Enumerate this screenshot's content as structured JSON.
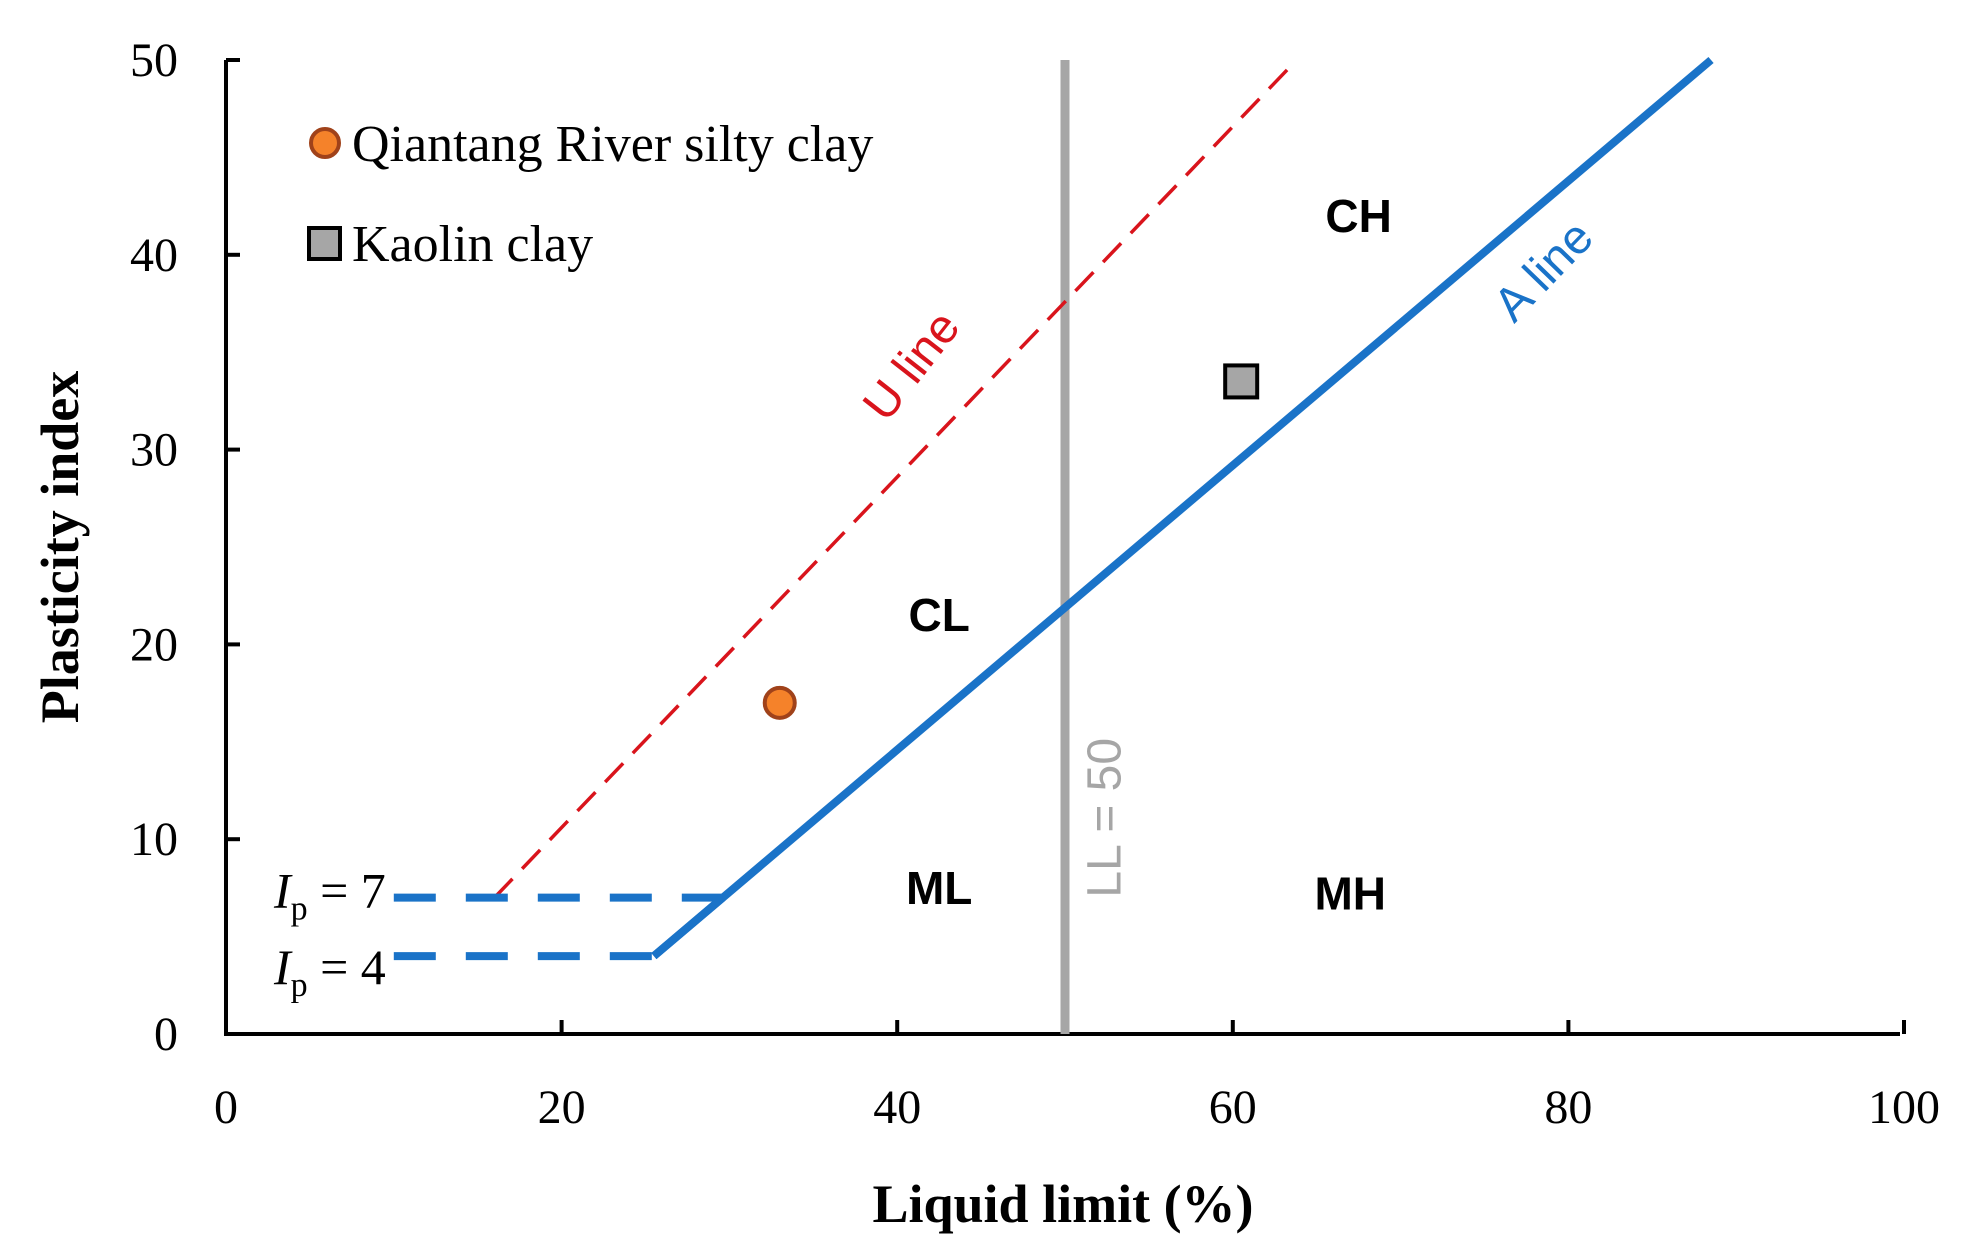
{
  "chart_data": {
    "type": "scatter",
    "title": "",
    "xlabel": "Liquid limit (%)",
    "ylabel": "Plasticity index",
    "xlim": [
      0,
      100
    ],
    "ylim": [
      0,
      50
    ],
    "x_ticks": [
      0,
      20,
      40,
      60,
      80,
      100
    ],
    "y_ticks": [
      0,
      10,
      20,
      30,
      40,
      50
    ],
    "grid": false,
    "legend_position": "top-left",
    "series": [
      {
        "name": "Qiantang River silty clay",
        "marker": "circle",
        "color": "#f5822a",
        "edge_color": "#a0421a",
        "points": [
          {
            "x": 33.0,
            "y": 17.0
          }
        ]
      },
      {
        "name": "Kaolin clay",
        "marker": "square",
        "color": "#a6a6a6",
        "edge_color": "#000000",
        "points": [
          {
            "x": 60.5,
            "y": 33.5
          }
        ]
      }
    ],
    "reference_lines": {
      "a_line": {
        "label": "A line",
        "color": "#1a73c8",
        "points": [
          [
            25.5,
            4
          ],
          [
            88.5,
            50
          ]
        ]
      },
      "a_line_segment": {
        "color": "#1a73c8",
        "points": [
          [
            25.5,
            4
          ],
          [
            29.6,
            7
          ]
        ]
      },
      "u_line": {
        "label": "U line",
        "color": "#d9141c",
        "points": [
          [
            16,
            7
          ],
          [
            63.8,
            50
          ]
        ]
      },
      "ll_50": {
        "label": "LL = 50",
        "color": "#a6a6a6",
        "x": 50
      },
      "ip_7": {
        "label_main": "I",
        "label_sub": "p",
        "label_rest": " = 7",
        "color": "#1a73c8",
        "y": 7,
        "x_range": [
          10,
          29.6
        ]
      },
      "ip_4": {
        "label_main": "I",
        "label_sub": "p",
        "label_rest": " = 4",
        "color": "#1a73c8",
        "y": 4,
        "x_range": [
          10,
          25.5
        ]
      }
    },
    "regions": [
      {
        "label": "CH",
        "x": 67.5,
        "y": 42
      },
      {
        "label": "CL",
        "x": 42.5,
        "y": 21.5
      },
      {
        "label": "ML",
        "x": 42.5,
        "y": 7.5
      },
      {
        "label": "MH",
        "x": 67,
        "y": 7.2
      }
    ]
  }
}
